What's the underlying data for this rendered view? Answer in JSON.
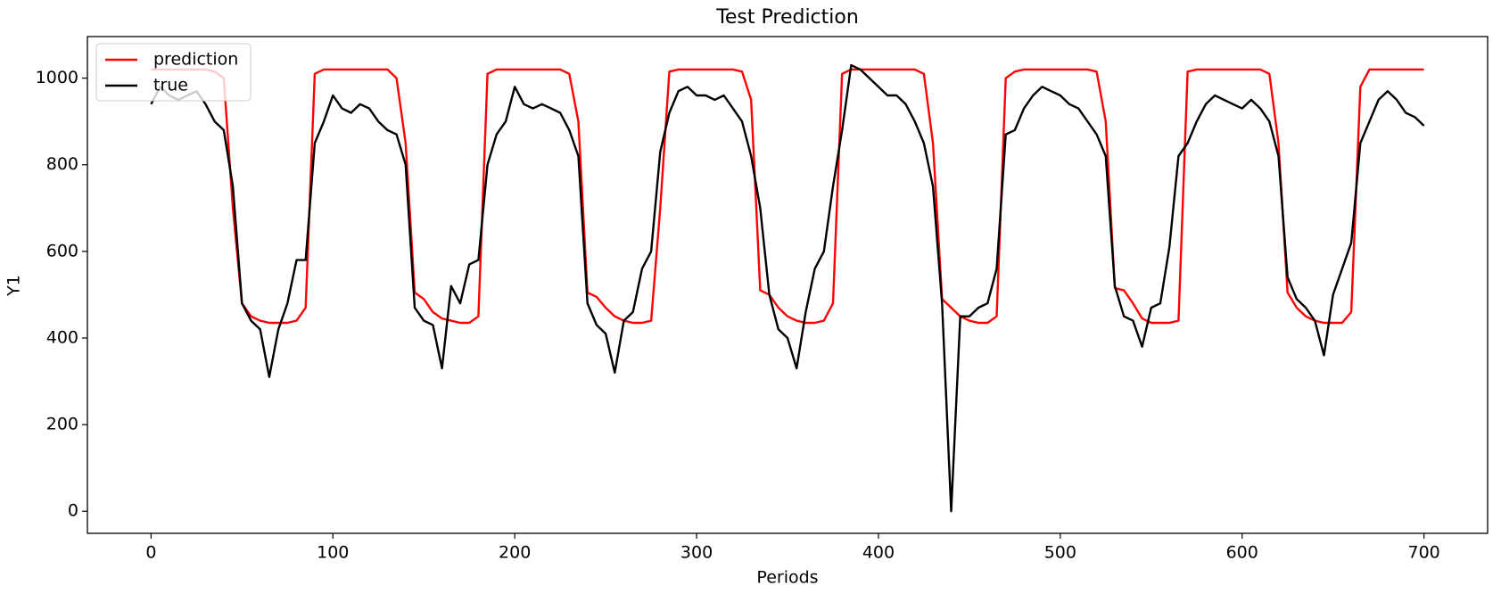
{
  "chart_data": {
    "type": "line",
    "title": "Test Prediction",
    "x_label": "Periods",
    "y_label": "Y1",
    "x": [
      0,
      5,
      10,
      15,
      20,
      25,
      30,
      35,
      40,
      45,
      50,
      55,
      60,
      65,
      70,
      75,
      80,
      85,
      90,
      95,
      100,
      105,
      110,
      115,
      120,
      125,
      130,
      135,
      140,
      145,
      150,
      155,
      160,
      165,
      170,
      175,
      180,
      185,
      190,
      195,
      200,
      205,
      210,
      215,
      220,
      225,
      230,
      235,
      240,
      245,
      250,
      255,
      260,
      265,
      270,
      275,
      280,
      285,
      290,
      295,
      300,
      305,
      310,
      315,
      320,
      325,
      330,
      335,
      340,
      345,
      350,
      355,
      360,
      365,
      370,
      375,
      380,
      385,
      390,
      395,
      400,
      405,
      410,
      415,
      420,
      425,
      430,
      435,
      440,
      445,
      450,
      455,
      460,
      465,
      470,
      475,
      480,
      485,
      490,
      495,
      500,
      505,
      510,
      515,
      520,
      525,
      530,
      535,
      540,
      545,
      550,
      555,
      560,
      565,
      570,
      575,
      580,
      585,
      590,
      595,
      600,
      605,
      610,
      615,
      620,
      625,
      630,
      635,
      640,
      645,
      650,
      655,
      660,
      665,
      670,
      675,
      680,
      685,
      690,
      695,
      700
    ],
    "series": [
      {
        "name": "prediction",
        "color": "#ff0000",
        "values": [
          1020,
          1020,
          1020,
          1020,
          1020,
          1020,
          1020,
          1015,
          1000,
          700,
          480,
          450,
          440,
          435,
          435,
          435,
          440,
          470,
          1010,
          1020,
          1020,
          1020,
          1020,
          1020,
          1020,
          1020,
          1020,
          1000,
          850,
          505,
          490,
          460,
          445,
          440,
          435,
          435,
          450,
          1010,
          1020,
          1020,
          1020,
          1020,
          1020,
          1020,
          1020,
          1020,
          1010,
          900,
          505,
          495,
          470,
          450,
          440,
          435,
          435,
          440,
          700,
          1015,
          1020,
          1020,
          1020,
          1020,
          1020,
          1020,
          1020,
          1015,
          950,
          510,
          500,
          470,
          450,
          440,
          435,
          435,
          440,
          480,
          1010,
          1020,
          1020,
          1020,
          1020,
          1020,
          1020,
          1020,
          1020,
          1010,
          850,
          490,
          470,
          450,
          440,
          435,
          435,
          450,
          1000,
          1015,
          1020,
          1020,
          1020,
          1020,
          1020,
          1020,
          1020,
          1020,
          1015,
          900,
          515,
          510,
          480,
          445,
          435,
          435,
          435,
          440,
          1015,
          1020,
          1020,
          1020,
          1020,
          1020,
          1020,
          1020,
          1020,
          1010,
          850,
          505,
          470,
          450,
          440,
          435,
          435,
          435,
          460,
          980,
          1020,
          1020,
          1020,
          1020,
          1020,
          1020,
          1020
        ]
      },
      {
        "name": "true",
        "color": "#000000",
        "values": [
          940,
          980,
          960,
          950,
          960,
          970,
          940,
          900,
          880,
          750,
          480,
          440,
          420,
          310,
          420,
          480,
          580,
          580,
          850,
          900,
          960,
          930,
          920,
          940,
          930,
          900,
          880,
          870,
          800,
          470,
          440,
          430,
          330,
          520,
          480,
          570,
          580,
          800,
          870,
          900,
          980,
          940,
          930,
          940,
          930,
          920,
          880,
          820,
          480,
          430,
          410,
          320,
          440,
          460,
          560,
          600,
          830,
          920,
          970,
          980,
          960,
          960,
          950,
          960,
          930,
          900,
          820,
          700,
          500,
          420,
          400,
          330,
          460,
          560,
          600,
          750,
          880,
          1030,
          1020,
          1000,
          980,
          960,
          960,
          940,
          900,
          850,
          750,
          480,
          0,
          450,
          450,
          470,
          480,
          560,
          870,
          880,
          930,
          960,
          980,
          970,
          960,
          940,
          930,
          900,
          870,
          820,
          520,
          450,
          440,
          380,
          470,
          480,
          610,
          820,
          850,
          900,
          940,
          960,
          950,
          940,
          930,
          950,
          930,
          900,
          820,
          540,
          490,
          470,
          440,
          360,
          500,
          560,
          620,
          850,
          900,
          950,
          970,
          950,
          920,
          910,
          890
        ]
      }
    ],
    "xlim": [
      -35,
      735
    ],
    "ylim": [
      -51,
      1096
    ],
    "xticks": [
      0,
      100,
      200,
      300,
      400,
      500,
      600,
      700
    ],
    "yticks": [
      0,
      200,
      400,
      600,
      800,
      1000
    ],
    "grid": false,
    "legend": "upper left"
  }
}
